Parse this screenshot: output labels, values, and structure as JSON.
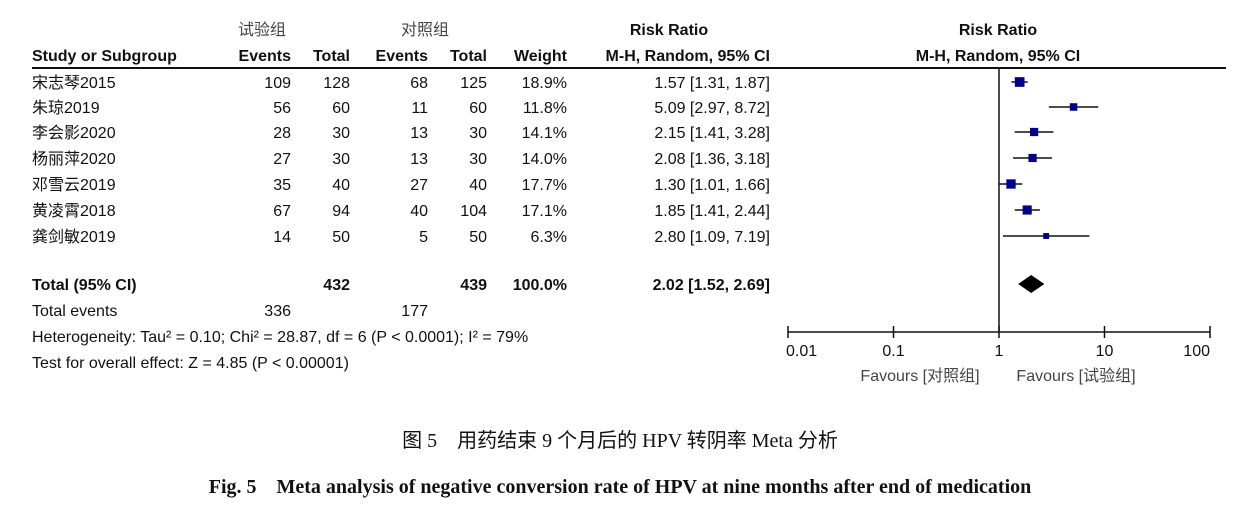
{
  "chart_data": {
    "type": "forest",
    "header": {
      "group_exp": "试验组",
      "group_ctrl": "对照组",
      "col_study": "Study or Subgroup",
      "col_events": "Events",
      "col_total": "Total",
      "col_weight": "Weight",
      "col_rr": "Risk Ratio",
      "col_method": "M-H, Random, 95% CI",
      "plot_title": "Risk Ratio",
      "plot_method": "M-H, Random, 95% CI"
    },
    "studies": [
      {
        "name": "宋志琴2015",
        "exp_events": "109",
        "exp_total": "128",
        "ctrl_events": "68",
        "ctrl_total": "125",
        "weight": "18.9%",
        "ci_text": "1.57 [1.31, 1.87]",
        "rr": 1.57,
        "lo": 1.31,
        "hi": 1.87
      },
      {
        "name": "朱琼2019",
        "exp_events": "56",
        "exp_total": "60",
        "ctrl_events": "11",
        "ctrl_total": "60",
        "weight": "11.8%",
        "ci_text": "5.09 [2.97, 8.72]",
        "rr": 5.09,
        "lo": 2.97,
        "hi": 8.72
      },
      {
        "name": "李会影2020",
        "exp_events": "28",
        "exp_total": "30",
        "ctrl_events": "13",
        "ctrl_total": "30",
        "weight": "14.1%",
        "ci_text": "2.15 [1.41, 3.28]",
        "rr": 2.15,
        "lo": 1.41,
        "hi": 3.28
      },
      {
        "name": "杨丽萍2020",
        "exp_events": "27",
        "exp_total": "30",
        "ctrl_events": "13",
        "ctrl_total": "30",
        "weight": "14.0%",
        "ci_text": "2.08 [1.36, 3.18]",
        "rr": 2.08,
        "lo": 1.36,
        "hi": 3.18
      },
      {
        "name": "邓雪云2019",
        "exp_events": "35",
        "exp_total": "40",
        "ctrl_events": "27",
        "ctrl_total": "40",
        "weight": "17.7%",
        "ci_text": "1.30 [1.01, 1.66]",
        "rr": 1.3,
        "lo": 1.01,
        "hi": 1.66
      },
      {
        "name": "黄凌霄2018",
        "exp_events": "67",
        "exp_total": "94",
        "ctrl_events": "40",
        "ctrl_total": "104",
        "weight": "17.1%",
        "ci_text": "1.85 [1.41, 2.44]",
        "rr": 1.85,
        "lo": 1.41,
        "hi": 2.44
      },
      {
        "name": "龚剑敏2019",
        "exp_events": "14",
        "exp_total": "50",
        "ctrl_events": "5",
        "ctrl_total": "50",
        "weight": "6.3%",
        "ci_text": "2.80 [1.09, 7.19]",
        "rr": 2.8,
        "lo": 1.09,
        "hi": 7.19
      }
    ],
    "total": {
      "label": "Total (95% CI)",
      "exp_total": "432",
      "ctrl_total": "439",
      "weight": "100.0%",
      "ci_text": "2.02 [1.52, 2.69]",
      "rr": 2.02,
      "lo": 1.52,
      "hi": 2.69
    },
    "total_events": {
      "label": "Total events",
      "exp": "336",
      "ctrl": "177"
    },
    "heterogeneity": "Heterogeneity: Tau² = 0.10; Chi² = 28.87, df = 6 (P < 0.0001); I² = 79%",
    "overall_effect": "Test for overall effect: Z = 4.85 (P < 0.00001)",
    "x_axis": {
      "scale": "log",
      "range": [
        0.01,
        100
      ],
      "ticks": [
        "0.01",
        "0.1",
        "1",
        "10",
        "100"
      ],
      "ticks_values": [
        0.01,
        0.1,
        1,
        10,
        100
      ]
    },
    "favours_left": "Favours [对照组]",
    "favours_right": "Favours [试验组]",
    "marker_color": "#00008b"
  },
  "caption": {
    "zh": "图 5　用药结束 9 个月后的 HPV 转阴率 Meta 分析",
    "en": "Fig. 5　Meta analysis of negative conversion rate of HPV at nine months after end of medication"
  }
}
